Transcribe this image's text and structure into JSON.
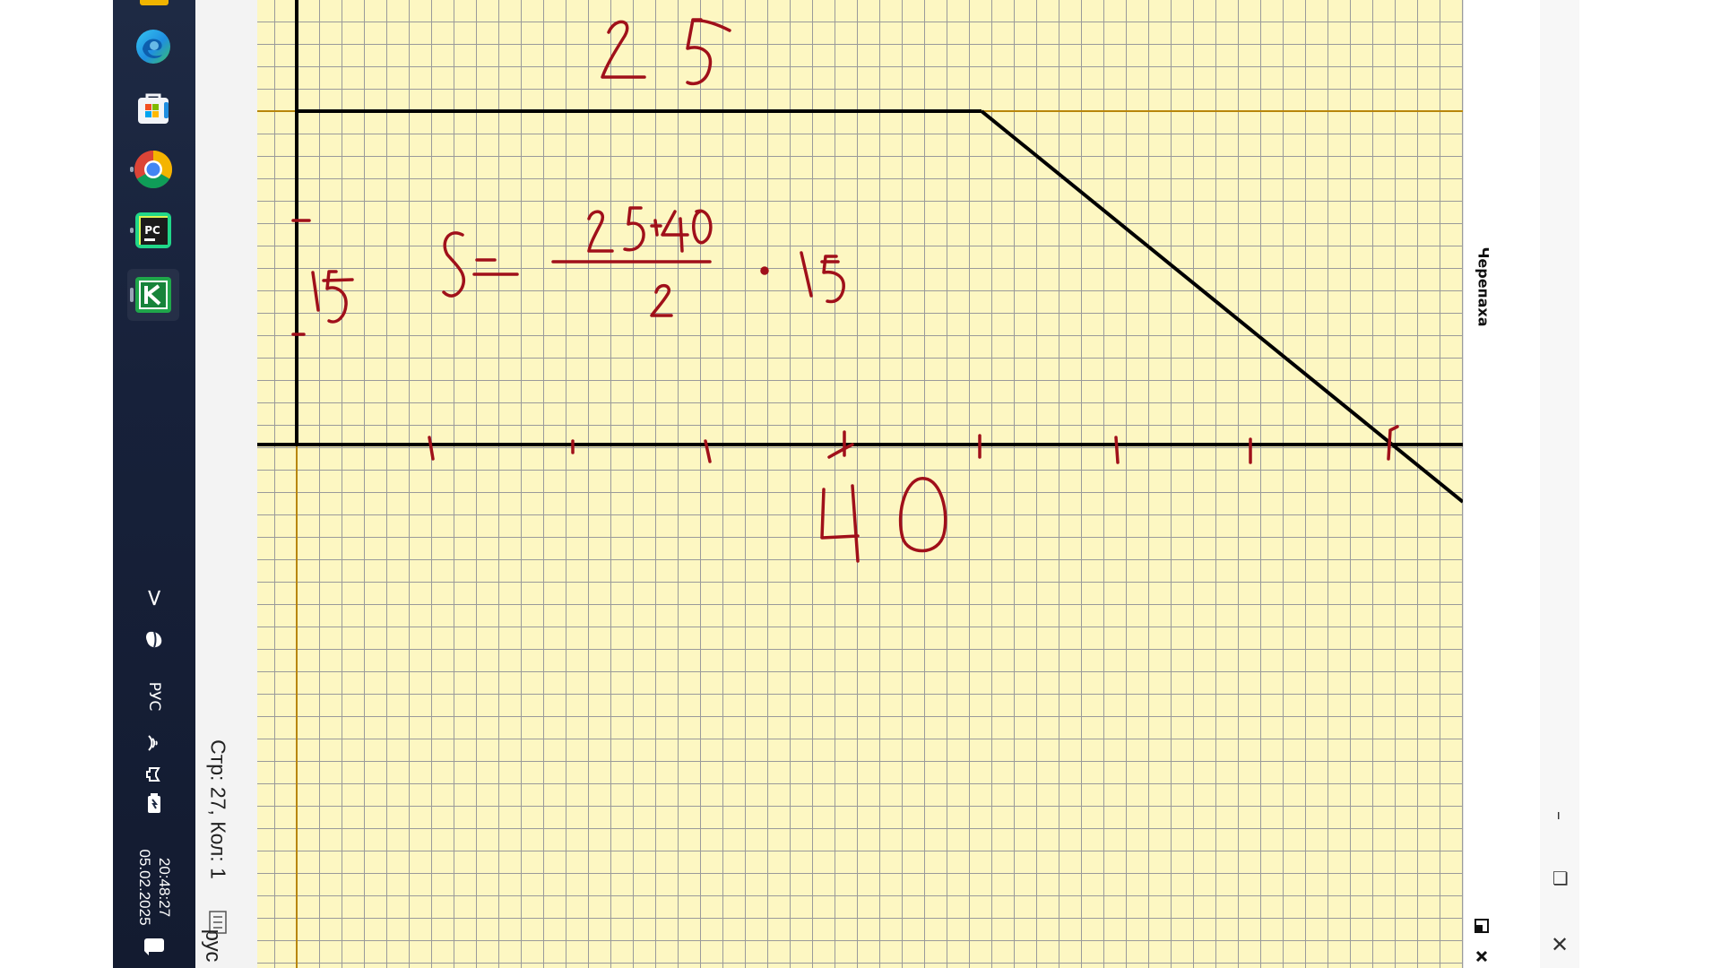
{
  "taskbar": {
    "apps": [
      {
        "name": "edge-icon"
      },
      {
        "name": "store-icon"
      },
      {
        "name": "chrome-icon"
      },
      {
        "name": "pycharm-icon",
        "badge": "PC"
      },
      {
        "name": "kumir-icon"
      }
    ],
    "tray": {
      "expand_glyph": ">",
      "language": "РУС",
      "time": "20:48:27",
      "date": "05.02.2025"
    }
  },
  "editor": {
    "status": "Стр: 27, Кол: 1",
    "input_lang": "рус"
  },
  "drawing": {
    "top_length": "25",
    "height": "15",
    "bottom_length": "40",
    "formula_lhs": "S =",
    "formula_numerator": "25+40",
    "formula_denominator": "2",
    "formula_dot": "·",
    "formula_factor": "15"
  },
  "panel": {
    "title": "Черепаха"
  },
  "window": {
    "minimize": "–",
    "restore": "❐",
    "close": "✕"
  },
  "colors": {
    "grid_bg": "#fdf7c2",
    "grid_line": "#9a9a9a",
    "axis_line": "#b8860b",
    "ink": "#a0101a",
    "turtle_path": "#000000"
  }
}
